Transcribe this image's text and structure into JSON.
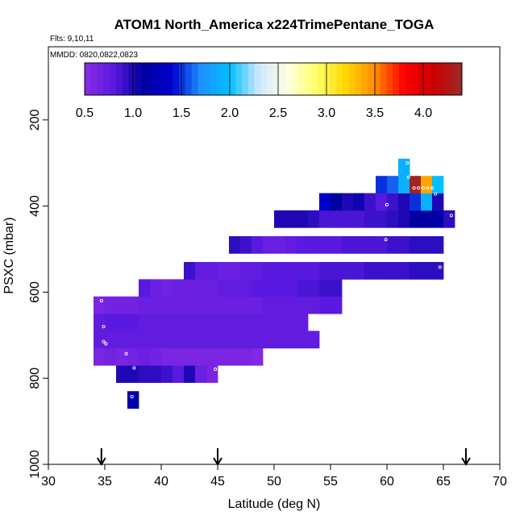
{
  "chart_data": {
    "type": "heatmap",
    "title": "ATOM1 North_America x224TrimePentane_TOGA",
    "flights_label": "Flts: 9,10,11",
    "dates_label": "MMDD: 0820,0822,0823",
    "xlabel": "Latitude (deg N)",
    "ylabel": "PSXC (mbar)",
    "xlim": [
      30,
      70
    ],
    "ylim": [
      1000,
      0
    ],
    "x_ticks": [
      "30",
      "35",
      "40",
      "45",
      "50",
      "55",
      "60",
      "65",
      "70"
    ],
    "y_ticks": [
      "200",
      "400",
      "600",
      "800",
      "1000"
    ],
    "colorbar": {
      "range": [
        0.5,
        4.4
      ],
      "ticks": [
        "0.5",
        "1.0",
        "1.5",
        "2.0",
        "2.5",
        "3.0",
        "3.5",
        "4.0"
      ],
      "stops": [
        "#8a2be2",
        "#5a19e0",
        "#0000a0",
        "#0000cd",
        "#1e90ff",
        "#00bfff",
        "#cfe8ff",
        "#ffffe0",
        "#ffff66",
        "#ffd700",
        "#ff8c00",
        "#ff0000",
        "#cc0000",
        "#9b2a2a"
      ]
    },
    "flight_markers_lat": [
      34.7,
      45.0,
      67.0
    ],
    "bin_size": {
      "dlat": 1,
      "dp": 20
    },
    "cells": [
      {
        "lat": 37.5,
        "p": 850,
        "v": 1.2
      },
      {
        "lat": 36.5,
        "p": 790,
        "v": 1.0
      },
      {
        "lat": 37.5,
        "p": 790,
        "v": 1.0
      },
      {
        "lat": 38.5,
        "p": 790,
        "v": 0.95
      },
      {
        "lat": 39.5,
        "p": 790,
        "v": 0.95
      },
      {
        "lat": 40.5,
        "p": 790,
        "v": 0.9
      },
      {
        "lat": 41.5,
        "p": 790,
        "v": 0.8
      },
      {
        "lat": 42.5,
        "p": 790,
        "v": 1.0
      },
      {
        "lat": 43.5,
        "p": 790,
        "v": 0.7
      },
      {
        "lat": 44.5,
        "p": 790,
        "v": 0.6
      },
      {
        "lat": 34.5,
        "p": 750,
        "v": 0.6
      },
      {
        "lat": 35.5,
        "p": 750,
        "v": 0.65
      },
      {
        "lat": 36.5,
        "p": 750,
        "v": 0.6
      },
      {
        "lat": 37.5,
        "p": 750,
        "v": 0.65
      },
      {
        "lat": 38.5,
        "p": 750,
        "v": 0.7
      },
      {
        "lat": 39.5,
        "p": 750,
        "v": 0.65
      },
      {
        "lat": 40.5,
        "p": 750,
        "v": 0.6
      },
      {
        "lat": 41.5,
        "p": 750,
        "v": 0.6
      },
      {
        "lat": 42.5,
        "p": 750,
        "v": 0.6
      },
      {
        "lat": 43.5,
        "p": 750,
        "v": 0.6
      },
      {
        "lat": 44.5,
        "p": 750,
        "v": 0.6
      },
      {
        "lat": 45.5,
        "p": 750,
        "v": 0.6
      },
      {
        "lat": 46.5,
        "p": 750,
        "v": 0.6
      },
      {
        "lat": 47.5,
        "p": 750,
        "v": 0.6
      },
      {
        "lat": 48.5,
        "p": 750,
        "v": 0.55
      },
      {
        "lat": 34.5,
        "p": 710,
        "v": 0.75
      },
      {
        "lat": 35.5,
        "p": 710,
        "v": 0.75
      },
      {
        "lat": 36.5,
        "p": 710,
        "v": 0.75
      },
      {
        "lat": 37.5,
        "p": 710,
        "v": 0.75
      },
      {
        "lat": 38.5,
        "p": 710,
        "v": 0.75
      },
      {
        "lat": 39.5,
        "p": 710,
        "v": 0.75
      },
      {
        "lat": 40.5,
        "p": 710,
        "v": 0.75
      },
      {
        "lat": 41.5,
        "p": 710,
        "v": 0.75
      },
      {
        "lat": 42.5,
        "p": 710,
        "v": 0.75
      },
      {
        "lat": 43.5,
        "p": 710,
        "v": 0.75
      },
      {
        "lat": 44.5,
        "p": 710,
        "v": 0.75
      },
      {
        "lat": 45.5,
        "p": 710,
        "v": 0.75
      },
      {
        "lat": 46.5,
        "p": 710,
        "v": 0.75
      },
      {
        "lat": 47.5,
        "p": 710,
        "v": 0.75
      },
      {
        "lat": 48.5,
        "p": 710,
        "v": 0.75
      },
      {
        "lat": 49.5,
        "p": 710,
        "v": 0.75
      },
      {
        "lat": 50.5,
        "p": 710,
        "v": 0.75
      },
      {
        "lat": 51.5,
        "p": 710,
        "v": 0.75
      },
      {
        "lat": 52.5,
        "p": 710,
        "v": 0.75
      },
      {
        "lat": 53.5,
        "p": 710,
        "v": 0.75
      },
      {
        "lat": 34.5,
        "p": 670,
        "v": 0.75
      },
      {
        "lat": 35.5,
        "p": 670,
        "v": 0.8
      },
      {
        "lat": 36.5,
        "p": 670,
        "v": 0.8
      },
      {
        "lat": 37.5,
        "p": 670,
        "v": 0.8
      },
      {
        "lat": 38.5,
        "p": 670,
        "v": 0.75
      },
      {
        "lat": 39.5,
        "p": 670,
        "v": 0.75
      },
      {
        "lat": 40.5,
        "p": 670,
        "v": 0.75
      },
      {
        "lat": 41.5,
        "p": 670,
        "v": 0.75
      },
      {
        "lat": 42.5,
        "p": 670,
        "v": 0.75
      },
      {
        "lat": 43.5,
        "p": 670,
        "v": 0.75
      },
      {
        "lat": 44.5,
        "p": 670,
        "v": 0.75
      },
      {
        "lat": 45.5,
        "p": 670,
        "v": 0.75
      },
      {
        "lat": 46.5,
        "p": 670,
        "v": 0.75
      },
      {
        "lat": 47.5,
        "p": 670,
        "v": 0.75
      },
      {
        "lat": 48.5,
        "p": 670,
        "v": 0.75
      },
      {
        "lat": 49.5,
        "p": 670,
        "v": 0.75
      },
      {
        "lat": 50.5,
        "p": 670,
        "v": 0.75
      },
      {
        "lat": 51.5,
        "p": 670,
        "v": 0.75
      },
      {
        "lat": 52.5,
        "p": 670,
        "v": 0.75
      },
      {
        "lat": 34.5,
        "p": 630,
        "v": 0.6
      },
      {
        "lat": 35.5,
        "p": 630,
        "v": 0.65
      },
      {
        "lat": 36.5,
        "p": 630,
        "v": 0.65
      },
      {
        "lat": 37.5,
        "p": 630,
        "v": 0.65
      },
      {
        "lat": 38.5,
        "p": 630,
        "v": 0.7
      },
      {
        "lat": 39.5,
        "p": 630,
        "v": 0.7
      },
      {
        "lat": 40.5,
        "p": 630,
        "v": 0.7
      },
      {
        "lat": 41.5,
        "p": 630,
        "v": 0.7
      },
      {
        "lat": 42.5,
        "p": 630,
        "v": 0.7
      },
      {
        "lat": 43.5,
        "p": 630,
        "v": 0.7
      },
      {
        "lat": 44.5,
        "p": 630,
        "v": 0.7
      },
      {
        "lat": 45.5,
        "p": 630,
        "v": 0.7
      },
      {
        "lat": 46.5,
        "p": 630,
        "v": 0.7
      },
      {
        "lat": 47.5,
        "p": 630,
        "v": 0.7
      },
      {
        "lat": 48.5,
        "p": 630,
        "v": 0.7
      },
      {
        "lat": 49.5,
        "p": 630,
        "v": 0.75
      },
      {
        "lat": 50.5,
        "p": 630,
        "v": 0.75
      },
      {
        "lat": 51.5,
        "p": 630,
        "v": 0.75
      },
      {
        "lat": 52.5,
        "p": 630,
        "v": 0.75
      },
      {
        "lat": 53.5,
        "p": 630,
        "v": 0.75
      },
      {
        "lat": 54.5,
        "p": 630,
        "v": 0.8
      },
      {
        "lat": 55.5,
        "p": 630,
        "v": 0.8
      },
      {
        "lat": 38.5,
        "p": 590,
        "v": 0.8
      },
      {
        "lat": 39.5,
        "p": 590,
        "v": 0.7
      },
      {
        "lat": 40.5,
        "p": 590,
        "v": 0.65
      },
      {
        "lat": 41.5,
        "p": 590,
        "v": 0.7
      },
      {
        "lat": 42.5,
        "p": 590,
        "v": 0.7
      },
      {
        "lat": 43.5,
        "p": 590,
        "v": 0.7
      },
      {
        "lat": 44.5,
        "p": 590,
        "v": 0.7
      },
      {
        "lat": 45.5,
        "p": 590,
        "v": 0.75
      },
      {
        "lat": 46.5,
        "p": 590,
        "v": 0.75
      },
      {
        "lat": 47.5,
        "p": 590,
        "v": 0.75
      },
      {
        "lat": 48.5,
        "p": 590,
        "v": 0.8
      },
      {
        "lat": 49.5,
        "p": 590,
        "v": 0.8
      },
      {
        "lat": 50.5,
        "p": 590,
        "v": 0.8
      },
      {
        "lat": 51.5,
        "p": 590,
        "v": 0.8
      },
      {
        "lat": 52.5,
        "p": 590,
        "v": 0.85
      },
      {
        "lat": 53.5,
        "p": 590,
        "v": 0.85
      },
      {
        "lat": 54.5,
        "p": 590,
        "v": 0.9
      },
      {
        "lat": 55.5,
        "p": 590,
        "v": 0.9
      },
      {
        "lat": 42.5,
        "p": 550,
        "v": 0.9
      },
      {
        "lat": 43.5,
        "p": 550,
        "v": 0.75
      },
      {
        "lat": 44.5,
        "p": 550,
        "v": 0.75
      },
      {
        "lat": 45.5,
        "p": 550,
        "v": 0.7
      },
      {
        "lat": 46.5,
        "p": 550,
        "v": 0.7
      },
      {
        "lat": 47.5,
        "p": 550,
        "v": 0.75
      },
      {
        "lat": 48.5,
        "p": 550,
        "v": 0.75
      },
      {
        "lat": 49.5,
        "p": 550,
        "v": 0.8
      },
      {
        "lat": 50.5,
        "p": 550,
        "v": 0.8
      },
      {
        "lat": 51.5,
        "p": 550,
        "v": 0.8
      },
      {
        "lat": 52.5,
        "p": 550,
        "v": 0.8
      },
      {
        "lat": 53.5,
        "p": 550,
        "v": 0.8
      },
      {
        "lat": 54.5,
        "p": 550,
        "v": 0.85
      },
      {
        "lat": 55.5,
        "p": 550,
        "v": 0.85
      },
      {
        "lat": 56.5,
        "p": 550,
        "v": 0.85
      },
      {
        "lat": 57.5,
        "p": 550,
        "v": 0.85
      },
      {
        "lat": 58.5,
        "p": 550,
        "v": 0.9
      },
      {
        "lat": 59.5,
        "p": 550,
        "v": 0.9
      },
      {
        "lat": 60.5,
        "p": 550,
        "v": 0.9
      },
      {
        "lat": 61.5,
        "p": 550,
        "v": 0.9
      },
      {
        "lat": 62.5,
        "p": 550,
        "v": 0.95
      },
      {
        "lat": 63.5,
        "p": 550,
        "v": 0.95
      },
      {
        "lat": 64.5,
        "p": 550,
        "v": 0.95
      },
      {
        "lat": 46.5,
        "p": 490,
        "v": 0.95
      },
      {
        "lat": 47.5,
        "p": 490,
        "v": 0.9
      },
      {
        "lat": 48.5,
        "p": 490,
        "v": 0.8
      },
      {
        "lat": 49.5,
        "p": 490,
        "v": 0.7
      },
      {
        "lat": 50.5,
        "p": 490,
        "v": 0.7
      },
      {
        "lat": 51.5,
        "p": 490,
        "v": 0.75
      },
      {
        "lat": 52.5,
        "p": 490,
        "v": 0.8
      },
      {
        "lat": 53.5,
        "p": 490,
        "v": 0.8
      },
      {
        "lat": 54.5,
        "p": 490,
        "v": 0.8
      },
      {
        "lat": 55.5,
        "p": 490,
        "v": 0.8
      },
      {
        "lat": 56.5,
        "p": 490,
        "v": 0.85
      },
      {
        "lat": 57.5,
        "p": 490,
        "v": 0.85
      },
      {
        "lat": 58.5,
        "p": 490,
        "v": 0.85
      },
      {
        "lat": 59.5,
        "p": 490,
        "v": 0.85
      },
      {
        "lat": 60.5,
        "p": 490,
        "v": 0.9
      },
      {
        "lat": 61.5,
        "p": 490,
        "v": 0.9
      },
      {
        "lat": 62.5,
        "p": 490,
        "v": 0.95
      },
      {
        "lat": 63.5,
        "p": 490,
        "v": 0.95
      },
      {
        "lat": 64.5,
        "p": 490,
        "v": 0.95
      },
      {
        "lat": 50.5,
        "p": 430,
        "v": 1.0
      },
      {
        "lat": 51.5,
        "p": 430,
        "v": 1.0
      },
      {
        "lat": 52.5,
        "p": 430,
        "v": 1.0
      },
      {
        "lat": 53.5,
        "p": 430,
        "v": 0.95
      },
      {
        "lat": 54.5,
        "p": 430,
        "v": 0.85
      },
      {
        "lat": 55.5,
        "p": 430,
        "v": 0.85
      },
      {
        "lat": 56.5,
        "p": 430,
        "v": 0.85
      },
      {
        "lat": 57.5,
        "p": 430,
        "v": 0.85
      },
      {
        "lat": 58.5,
        "p": 430,
        "v": 0.9
      },
      {
        "lat": 59.5,
        "p": 430,
        "v": 0.9
      },
      {
        "lat": 60.5,
        "p": 430,
        "v": 0.95
      },
      {
        "lat": 61.5,
        "p": 430,
        "v": 1.0
      },
      {
        "lat": 62.5,
        "p": 430,
        "v": 1.1
      },
      {
        "lat": 63.5,
        "p": 430,
        "v": 1.1
      },
      {
        "lat": 64.5,
        "p": 430,
        "v": 1.15
      },
      {
        "lat": 65.5,
        "p": 430,
        "v": 0.95
      },
      {
        "lat": 54.5,
        "p": 390,
        "v": 1.4
      },
      {
        "lat": 55.5,
        "p": 390,
        "v": 1.1
      },
      {
        "lat": 56.5,
        "p": 390,
        "v": 1.0
      },
      {
        "lat": 57.5,
        "p": 390,
        "v": 1.05
      },
      {
        "lat": 58.5,
        "p": 390,
        "v": 0.9
      },
      {
        "lat": 59.5,
        "p": 390,
        "v": 0.8
      },
      {
        "lat": 60.5,
        "p": 390,
        "v": 0.9
      },
      {
        "lat": 61.5,
        "p": 390,
        "v": 1.0
      },
      {
        "lat": 62.5,
        "p": 390,
        "v": 1.5
      },
      {
        "lat": 63.5,
        "p": 390,
        "v": 1.9
      },
      {
        "lat": 64.5,
        "p": 390,
        "v": 1.0
      },
      {
        "lat": 59.5,
        "p": 350,
        "v": 1.5
      },
      {
        "lat": 60.5,
        "p": 350,
        "v": 1.6
      },
      {
        "lat": 61.5,
        "p": 350,
        "v": 1.9
      },
      {
        "lat": 62.5,
        "p": 350,
        "v": 4.35
      },
      {
        "lat": 63.5,
        "p": 350,
        "v": 3.4
      },
      {
        "lat": 64.5,
        "p": 350,
        "v": 2.0
      },
      {
        "lat": 61.5,
        "p": 310,
        "v": 1.9
      }
    ],
    "sample_points": [
      {
        "lat": 34.7,
        "p": 620
      },
      {
        "lat": 34.9,
        "p": 680
      },
      {
        "lat": 34.9,
        "p": 715
      },
      {
        "lat": 35.1,
        "p": 720
      },
      {
        "lat": 36.9,
        "p": 743
      },
      {
        "lat": 37.6,
        "p": 776
      },
      {
        "lat": 37.4,
        "p": 843
      },
      {
        "lat": 44.8,
        "p": 779
      },
      {
        "lat": 59.9,
        "p": 478
      },
      {
        "lat": 60.0,
        "p": 397
      },
      {
        "lat": 61.8,
        "p": 300
      },
      {
        "lat": 61.9,
        "p": 333
      },
      {
        "lat": 62.4,
        "p": 358
      },
      {
        "lat": 62.8,
        "p": 358
      },
      {
        "lat": 63.2,
        "p": 358
      },
      {
        "lat": 63.6,
        "p": 358
      },
      {
        "lat": 64.0,
        "p": 358
      },
      {
        "lat": 64.3,
        "p": 372
      },
      {
        "lat": 64.5,
        "p": 457
      },
      {
        "lat": 64.7,
        "p": 542
      },
      {
        "lat": 65.7,
        "p": 422
      }
    ]
  }
}
